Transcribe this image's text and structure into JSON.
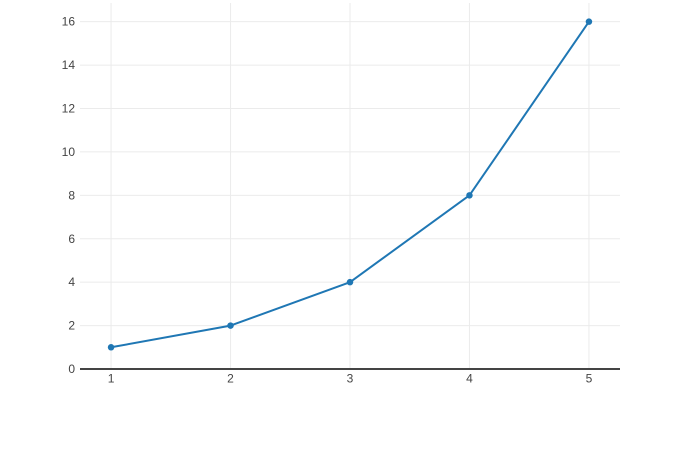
{
  "chart_data": {
    "type": "line",
    "title": "",
    "xlabel": "",
    "ylabel": "",
    "x": [
      1,
      2,
      3,
      4,
      5
    ],
    "y": [
      1,
      2,
      4,
      8,
      16
    ],
    "x_tick_values": [
      1,
      2,
      3,
      4,
      5
    ],
    "x_tick_labels": [
      "1",
      "2",
      "3",
      "4",
      "5"
    ],
    "y_tick_values": [
      0,
      2,
      4,
      6,
      8,
      10,
      12,
      14,
      16
    ],
    "y_tick_labels": [
      "0",
      "2",
      "4",
      "6",
      "8",
      "10",
      "12",
      "14",
      "16"
    ],
    "xlim": [
      0.74,
      5.26
    ],
    "ylim": [
      0,
      16.86
    ],
    "grid": true,
    "legend": false,
    "mode": "lines+markers",
    "colors": {
      "line": "#1f77b4",
      "marker": "#1f77b4",
      "grid": "#ebebeb",
      "axis_line": "#444444",
      "tick_label": "#444444",
      "background": "#ffffff"
    }
  }
}
